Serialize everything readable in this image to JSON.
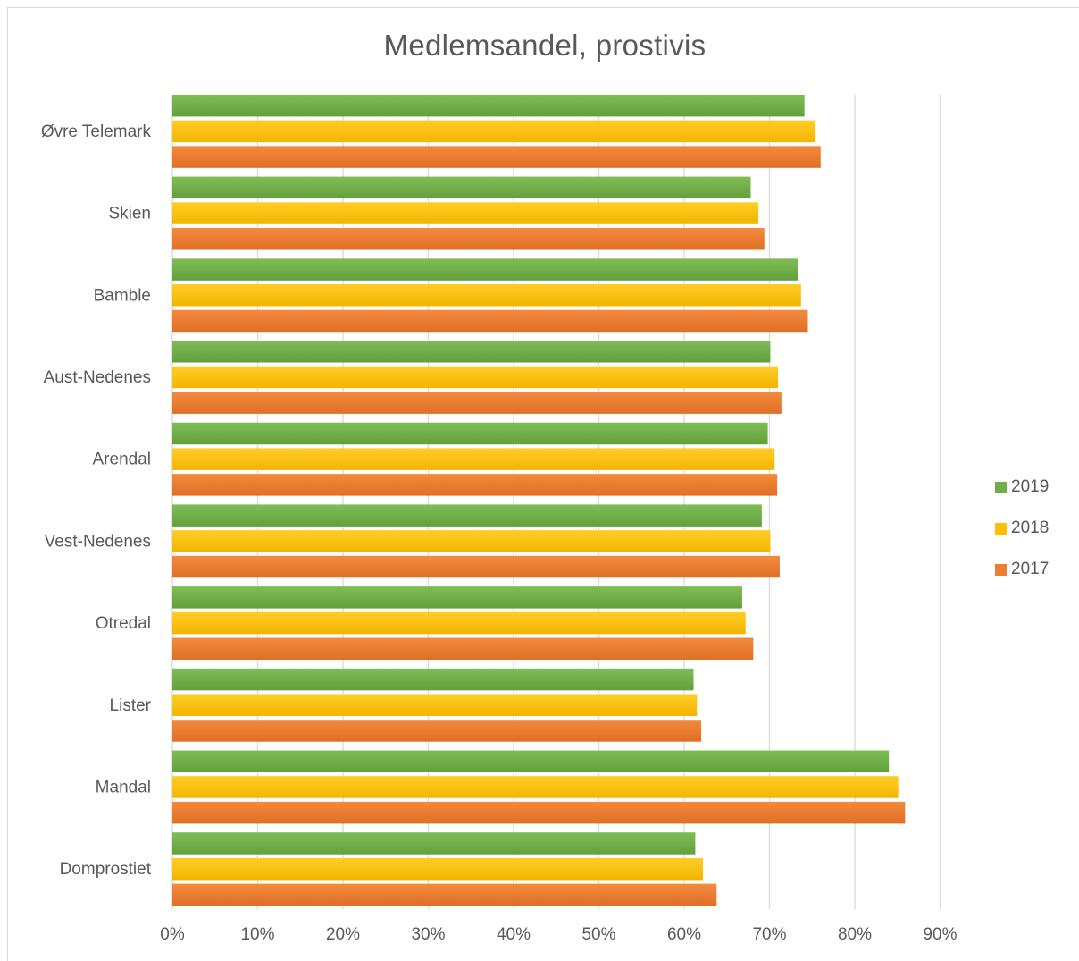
{
  "chart_data": {
    "type": "bar",
    "orientation": "horizontal",
    "title": "Medlemsandel, prostivis",
    "xlabel": "",
    "ylabel": "",
    "xlim": [
      0,
      90
    ],
    "x_unit": "%",
    "x_ticks": [
      "0%",
      "10%",
      "20%",
      "30%",
      "40%",
      "50%",
      "60%",
      "70%",
      "80%",
      "90%"
    ],
    "grid": true,
    "legend_position": "right",
    "categories": [
      "Øvre Telemark",
      "Skien",
      "Bamble",
      "Aust-Nedenes",
      "Arendal",
      "Vest-Nedenes",
      "Otredal",
      "Lister",
      "Mandal",
      "Domprostiet"
    ],
    "series": [
      {
        "name": "2019",
        "color": "#70ad47",
        "values": [
          74.1,
          67.8,
          73.3,
          70.1,
          69.8,
          69.1,
          66.8,
          61.1,
          84.0,
          61.3
        ]
      },
      {
        "name": "2018",
        "color": "#ffc000",
        "values": [
          75.3,
          68.7,
          73.7,
          71.0,
          70.6,
          70.1,
          67.2,
          61.5,
          85.1,
          62.2
        ]
      },
      {
        "name": "2017",
        "color": "#ed7d31",
        "values": [
          76.0,
          69.4,
          74.5,
          71.4,
          70.9,
          71.2,
          68.1,
          62.0,
          85.9,
          63.8
        ]
      }
    ]
  }
}
